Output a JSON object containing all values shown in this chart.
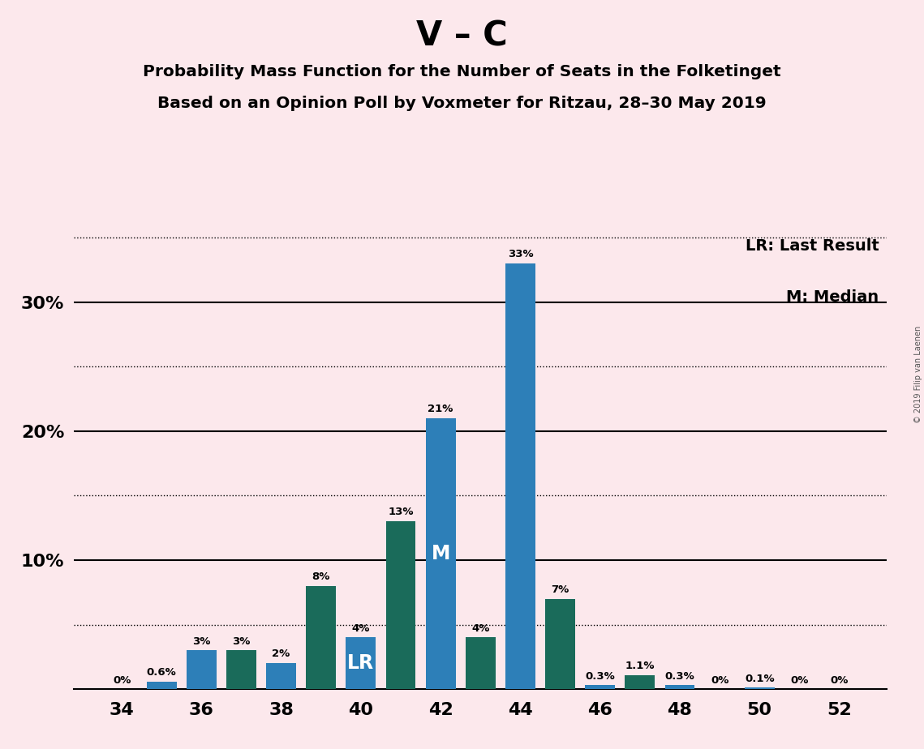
{
  "title_main": "V – C",
  "title_sub1": "Probability Mass Function for the Number of Seats in the Folketinget",
  "title_sub2": "Based on an Opinion Poll by Voxmeter for Ritzau, 28–30 May 2019",
  "copyright": "© 2019 Filip van Laenen",
  "seats": [
    34,
    35,
    36,
    37,
    38,
    39,
    40,
    41,
    42,
    43,
    44,
    45,
    46,
    47,
    48,
    49,
    50,
    51,
    52
  ],
  "values": [
    0.0,
    0.6,
    3.0,
    3.0,
    2.0,
    8.0,
    4.0,
    13.0,
    21.0,
    4.0,
    33.0,
    7.0,
    0.3,
    1.1,
    0.3,
    0.0,
    0.1,
    0.0,
    0.0
  ],
  "labels": [
    "0%",
    "0.6%",
    "3%",
    "3%",
    "2%",
    "8%",
    "4%",
    "13%",
    "21%",
    "4%",
    "33%",
    "7%",
    "0.3%",
    "1.1%",
    "0.3%",
    "0%",
    "0.1%",
    "0%",
    "0%"
  ],
  "colors": [
    "#1a6b5a",
    "#2d7fb8",
    "#2d7fb8",
    "#1a6b5a",
    "#2d7fb8",
    "#1a6b5a",
    "#2d7fb8",
    "#1a6b5a",
    "#2d7fb8",
    "#1a6b5a",
    "#2d7fb8",
    "#1a6b5a",
    "#2d7fb8",
    "#1a6b5a",
    "#2d7fb8",
    "#1a6b5a",
    "#2d7fb8",
    "#1a6b5a",
    "#2d7fb8"
  ],
  "lr_seat": 40,
  "median_seat": 42,
  "background_color": "#fce8ec",
  "ylim_max": 36,
  "legend_lr": "LR: Last Result",
  "legend_m": "M: Median"
}
